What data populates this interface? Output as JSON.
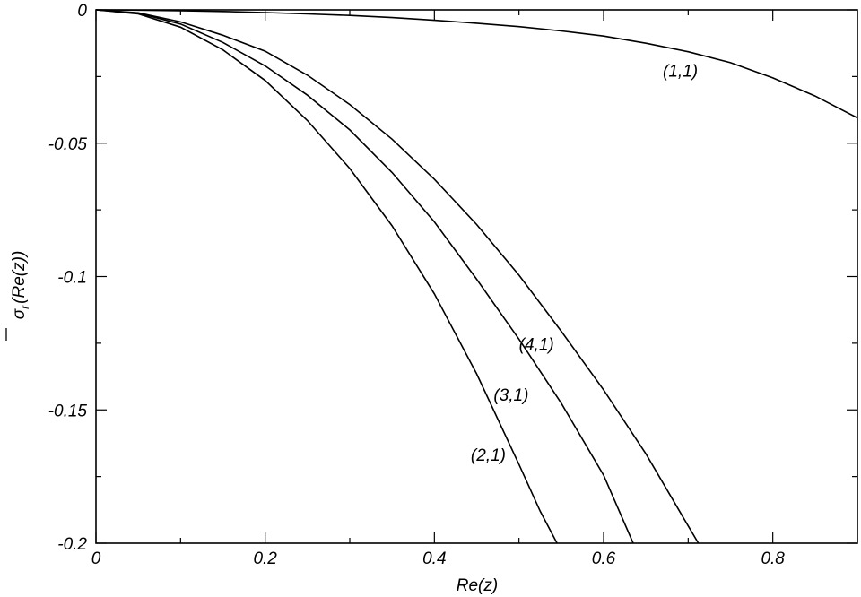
{
  "chart_data": {
    "type": "line",
    "title": "",
    "xlabel": "Re(z)",
    "ylabel_sigma": "σ",
    "ylabel_sub": "r",
    "ylabel_rest": "(Re(z))",
    "xlim": [
      0,
      0.9
    ],
    "ylim": [
      -0.2,
      0
    ],
    "x_ticks": [
      {
        "value": 0,
        "label": "0"
      },
      {
        "value": 0.2,
        "label": "0.2"
      },
      {
        "value": 0.4,
        "label": "0.4"
      },
      {
        "value": 0.6,
        "label": "0.6"
      },
      {
        "value": 0.8,
        "label": "0.8"
      }
    ],
    "x_minor_ticks": [
      0.1,
      0.3,
      0.5,
      0.7
    ],
    "y_ticks": [
      {
        "value": 0,
        "label": "0"
      },
      {
        "value": -0.05,
        "label": "-0.05"
      },
      {
        "value": -0.1,
        "label": "-0.1"
      },
      {
        "value": -0.15,
        "label": "-0.15"
      },
      {
        "value": -0.2,
        "label": "-0.2"
      }
    ],
    "y_minor_ticks": [
      -0.025,
      -0.075,
      -0.125,
      -0.175
    ],
    "grid": false,
    "series": [
      {
        "name": "(1,1)",
        "label_at": [
          0.67,
          -0.025
        ],
        "points": [
          [
            0,
            0
          ],
          [
            0.05,
            -0.0001
          ],
          [
            0.1,
            -0.0003
          ],
          [
            0.15,
            -0.0006
          ],
          [
            0.2,
            -0.001
          ],
          [
            0.25,
            -0.0015
          ],
          [
            0.3,
            -0.0021
          ],
          [
            0.35,
            -0.0029
          ],
          [
            0.4,
            -0.0039
          ],
          [
            0.45,
            -0.005
          ],
          [
            0.5,
            -0.0063
          ],
          [
            0.55,
            -0.0079
          ],
          [
            0.6,
            -0.0098
          ],
          [
            0.65,
            -0.0125
          ],
          [
            0.7,
            -0.0157
          ],
          [
            0.75,
            -0.0198
          ],
          [
            0.8,
            -0.0255
          ],
          [
            0.85,
            -0.0323
          ],
          [
            0.9,
            -0.0405
          ]
        ]
      },
      {
        "name": "(2,1)",
        "label_at": [
          0.443,
          -0.169
        ],
        "points": [
          [
            0,
            0
          ],
          [
            0.05,
            -0.0015
          ],
          [
            0.1,
            -0.0065
          ],
          [
            0.15,
            -0.015
          ],
          [
            0.2,
            -0.0265
          ],
          [
            0.25,
            -0.0415
          ],
          [
            0.3,
            -0.0595
          ],
          [
            0.35,
            -0.081
          ],
          [
            0.4,
            -0.1065
          ],
          [
            0.45,
            -0.1365
          ],
          [
            0.5,
            -0.1705
          ],
          [
            0.525,
            -0.188
          ],
          [
            0.545,
            -0.2
          ]
        ]
      },
      {
        "name": "(3,1)",
        "label_at": [
          0.47,
          -0.1465
        ],
        "points": [
          [
            0,
            0
          ],
          [
            0.05,
            -0.0012
          ],
          [
            0.1,
            -0.0053
          ],
          [
            0.15,
            -0.0122
          ],
          [
            0.2,
            -0.021
          ],
          [
            0.25,
            -0.032
          ],
          [
            0.3,
            -0.045
          ],
          [
            0.35,
            -0.061
          ],
          [
            0.4,
            -0.0795
          ],
          [
            0.45,
            -0.101
          ],
          [
            0.5,
            -0.1235
          ],
          [
            0.55,
            -0.1475
          ],
          [
            0.6,
            -0.1745
          ],
          [
            0.635,
            -0.2
          ]
        ]
      },
      {
        "name": "(4,1)",
        "label_at": [
          0.5,
          -0.1275
        ],
        "points": [
          [
            0,
            0
          ],
          [
            0.05,
            -0.0011
          ],
          [
            0.1,
            -0.0045
          ],
          [
            0.15,
            -0.0095
          ],
          [
            0.2,
            -0.0155
          ],
          [
            0.25,
            -0.0245
          ],
          [
            0.3,
            -0.0355
          ],
          [
            0.35,
            -0.0485
          ],
          [
            0.4,
            -0.0635
          ],
          [
            0.45,
            -0.0805
          ],
          [
            0.5,
            -0.0995
          ],
          [
            0.55,
            -0.1205
          ],
          [
            0.6,
            -0.1425
          ],
          [
            0.65,
            -0.1665
          ],
          [
            0.7,
            -0.1935
          ],
          [
            0.712,
            -0.2
          ]
        ]
      }
    ]
  }
}
